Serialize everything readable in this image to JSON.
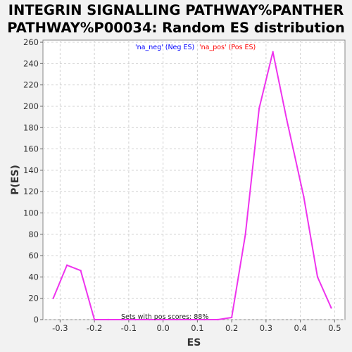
{
  "chart_data": {
    "type": "line",
    "title_lines": [
      "INTEGRIN SIGNALLING PATHWAY%PANTHER",
      "PATHWAY%P00034: Random ES distribution"
    ],
    "xlabel": "ES",
    "ylabel": "P(ES)",
    "xlim": [
      -0.35,
      0.53
    ],
    "ylim": [
      0,
      262
    ],
    "x_ticks": [
      -0.3,
      -0.2,
      -0.1,
      0.0,
      0.1,
      0.2,
      0.3,
      0.4,
      0.5
    ],
    "x_tick_labels": [
      "-0.3",
      "-0.2",
      "-0.1",
      "0.0",
      "0.1",
      "0.2",
      "0.3",
      "0.4",
      "0.5"
    ],
    "y_ticks": [
      0,
      20,
      40,
      60,
      80,
      100,
      120,
      140,
      160,
      180,
      200,
      220,
      240,
      260
    ],
    "y_tick_labels": [
      "0",
      "20",
      "40",
      "60",
      "80",
      "100",
      "120",
      "140",
      "160",
      "180",
      "200",
      "220",
      "240",
      "260"
    ],
    "grid": true,
    "legend_position": "top-center",
    "legend": [
      {
        "label": "'na_neg' (Neg ES)",
        "color": "#0000ff"
      },
      {
        "label": "'na_pos' (Pos ES)",
        "color": "#ff0000"
      }
    ],
    "series": [
      {
        "color": "#ee33ee",
        "x": [
          -0.32,
          -0.28,
          -0.24,
          -0.2,
          -0.16,
          -0.12,
          -0.08,
          -0.04,
          0.0,
          0.04,
          0.08,
          0.12,
          0.16,
          0.2,
          0.24,
          0.28,
          0.32,
          0.36,
          0.41,
          0.45,
          0.49
        ],
        "y": [
          20,
          51,
          46,
          0,
          0,
          0,
          0,
          0,
          0,
          0,
          0,
          0,
          0,
          2,
          80,
          198,
          251,
          188,
          115,
          40,
          11
        ]
      }
    ],
    "annotation": "Sets with pos scores: 88%"
  },
  "colors": {
    "background": "#f2f2f2",
    "plot_background": "#ffffff",
    "grid": "#d0d0d0",
    "line": "#ee33ee"
  }
}
